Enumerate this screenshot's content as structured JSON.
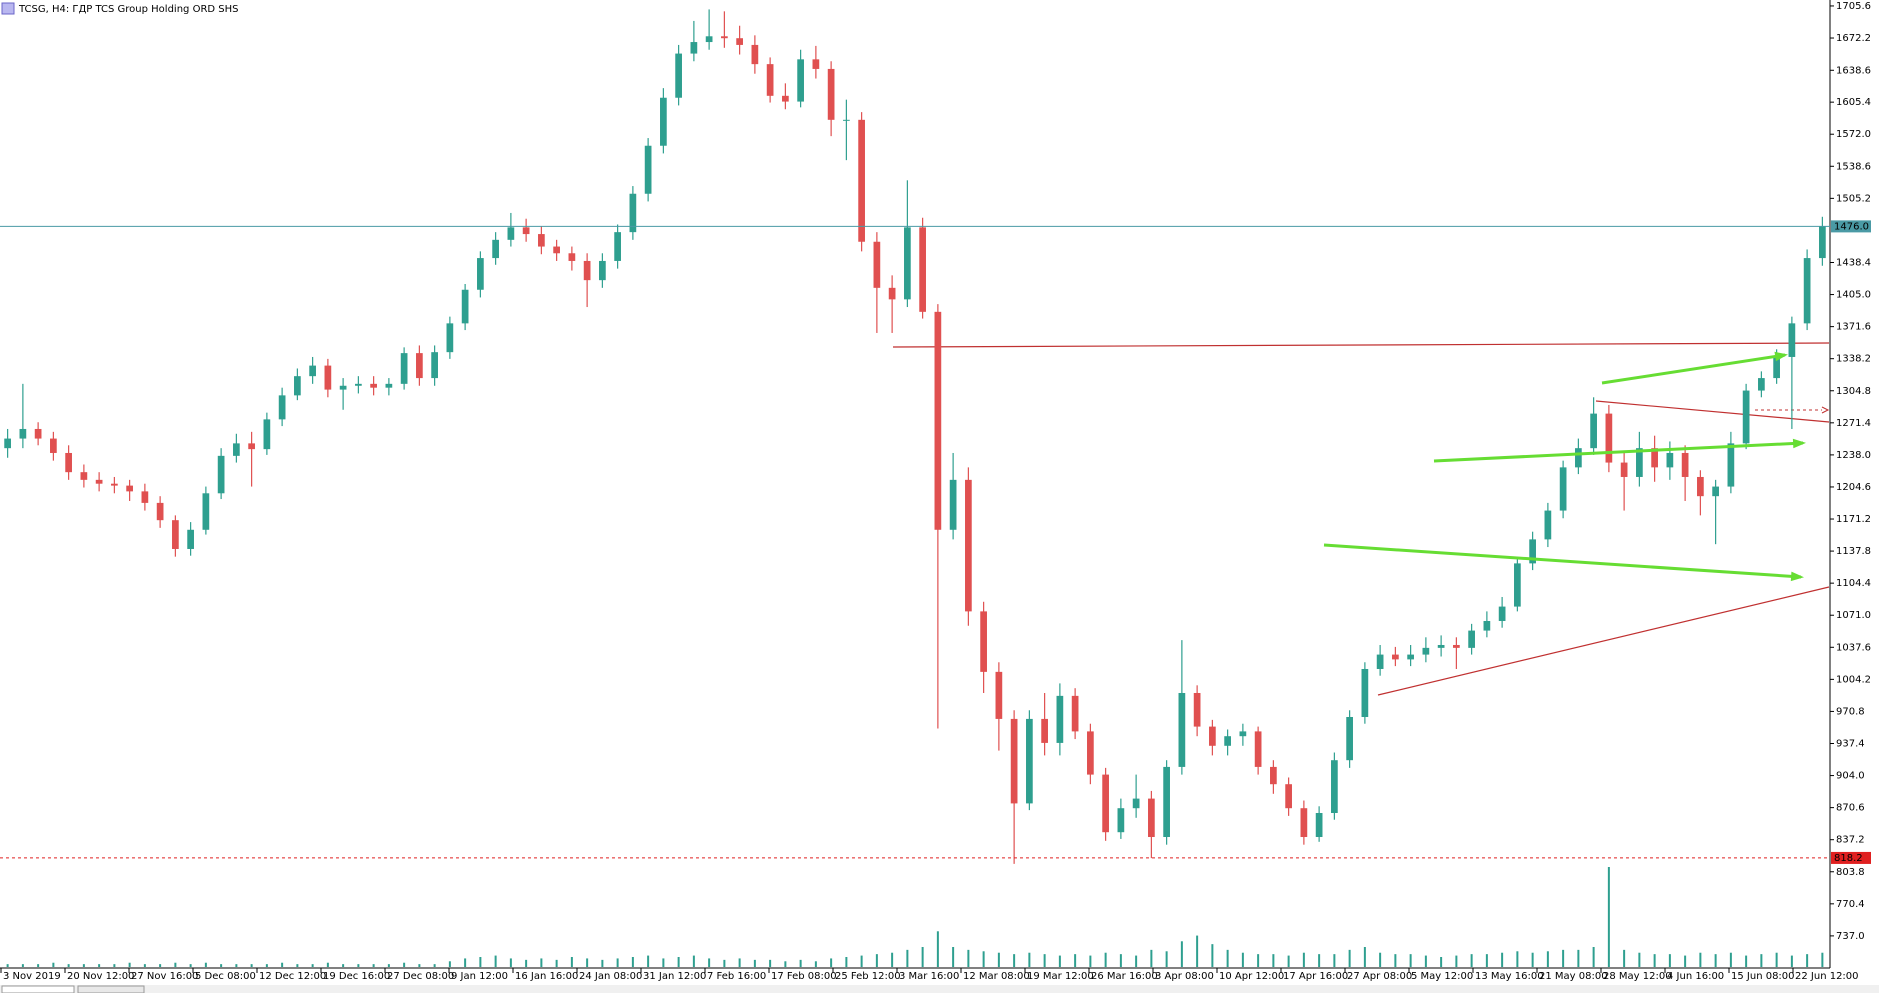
{
  "chart_data": {
    "type": "candlestick",
    "title": "TCSG, H4:  ГДР TCS Group Holding ORD SHS",
    "bull_color": "#2e9f8f",
    "bear_color": "#e05050",
    "volume_color": "#2e9f8f",
    "ylim": [
      704.6,
      1711.8
    ],
    "yticks": [
      1705.6,
      {
        "value": 1672.2,
        "label": "1672.2"
      },
      1638.6,
      1605.4,
      {
        "value": 1572.0,
        "label": "1572.0"
      },
      1538.6,
      1505.2,
      1438.4,
      {
        "value": 1405.0,
        "label": "1405.0"
      },
      1371.6,
      1338.2,
      1304.8,
      1271.4,
      {
        "value": 1238.0,
        "label": "1238.0"
      },
      1204.6,
      1171.2,
      1137.8,
      1104.4,
      {
        "value": 1071.0,
        "label": "1071.0"
      },
      1037.6,
      1004.2,
      970.8,
      937.4,
      {
        "value": 904.0,
        "label": "904.0"
      },
      870.6,
      837.2,
      803.8,
      770.4,
      {
        "value": 737.0,
        "label": "737.0"
      }
    ],
    "hlines": [
      {
        "value": 1476.0,
        "label": "1476.0",
        "color": "#4a9aa5",
        "style": "solid"
      },
      {
        "value": 818.2,
        "label": "818.2",
        "color": "#e02020",
        "style": "dotted"
      }
    ],
    "xtick_labels": [
      "3 Nov 2019",
      "20 Nov 12:00",
      "27 Nov 16:00",
      "5 Dec 08:00",
      "12 Dec 12:00",
      "19 Dec 16:00",
      "27 Dec 08:00",
      "9 Jan 12:00",
      "16 Jan 16:00",
      "24 Jan 08:00",
      "31 Jan 12:00",
      "7 Feb 16:00",
      "17 Feb 08:00",
      "25 Feb 12:00",
      "3 Mar 16:00",
      "12 Mar 08:00",
      "19 Mar 12:00",
      "26 Mar 16:00",
      "3 Apr 08:00",
      "10 Apr 12:00",
      "17 Apr 16:00",
      "27 Apr 08:00",
      "5 May 12:00",
      "13 May 16:00",
      "21 May 08:00",
      "28 May 12:00",
      "4 Jun 16:00",
      "15 Jun 08:00",
      "22 Jun 12:00"
    ],
    "open": [
      1245,
      1255,
      1265,
      1255,
      1240,
      1220,
      1212,
      1208,
      1206,
      1200,
      1188,
      1170,
      1140,
      1160,
      1198,
      1237,
      1250,
      1244,
      1275,
      1300,
      1320,
      1331,
      1306,
      1310,
      1312,
      1308,
      1312,
      1344,
      1318,
      1345,
      1375,
      1410,
      1443,
      1462,
      1475,
      1468,
      1455,
      1448,
      1440,
      1420,
      1440,
      1470,
      1510,
      1560,
      1610,
      1656,
      1668,
      1674,
      1672,
      1665,
      1645,
      1612,
      1606,
      1650,
      1640,
      1587,
      1587,
      1460,
      1412,
      1400,
      1475,
      1387,
      1160,
      1212,
      1075,
      1012,
      963,
      875,
      963,
      938,
      987,
      950,
      905,
      845,
      870,
      880,
      840,
      913,
      990,
      955,
      935,
      945,
      950,
      913,
      895,
      870,
      840,
      865,
      920,
      965,
      1015,
      1030,
      1025,
      1030,
      1037,
      1040,
      1037,
      1055,
      1065,
      1080,
      1125,
      1150,
      1180,
      1225,
      1245,
      1281,
      1230,
      1215,
      1245,
      1225,
      1240,
      1215,
      1195,
      1205,
      1250,
      1305,
      1318,
      1340,
      1375,
      1443
    ],
    "high": [
      1265,
      1312,
      1272,
      1262,
      1248,
      1228,
      1220,
      1215,
      1212,
      1208,
      1195,
      1175,
      1168,
      1205,
      1245,
      1260,
      1262,
      1282,
      1308,
      1328,
      1340,
      1338,
      1318,
      1320,
      1320,
      1318,
      1350,
      1352,
      1352,
      1382,
      1416,
      1450,
      1470,
      1490,
      1484,
      1476,
      1462,
      1455,
      1448,
      1448,
      1478,
      1518,
      1568,
      1620,
      1665,
      1690,
      1702,
      1700,
      1685,
      1675,
      1652,
      1625,
      1660,
      1664,
      1648,
      1608,
      1595,
      1470,
      1425,
      1524,
      1485,
      1395,
      1240,
      1225,
      1085,
      1022,
      972,
      972,
      990,
      1000,
      995,
      958,
      912,
      880,
      905,
      888,
      920,
      1045,
      998,
      962,
      952,
      958,
      955,
      920,
      902,
      878,
      872,
      928,
      972,
      1022,
      1040,
      1038,
      1040,
      1048,
      1050,
      1048,
      1062,
      1075,
      1090,
      1132,
      1158,
      1188,
      1232,
      1255,
      1298,
      1290,
      1240,
      1262,
      1258,
      1252,
      1248,
      1222,
      1212,
      1262,
      1312,
      1325,
      1348,
      1382,
      1452,
      1486
    ],
    "low": [
      1235,
      1245,
      1248,
      1232,
      1212,
      1204,
      1200,
      1198,
      1190,
      1180,
      1162,
      1132,
      1133,
      1155,
      1192,
      1230,
      1205,
      1238,
      1268,
      1295,
      1312,
      1298,
      1285,
      1302,
      1300,
      1300,
      1306,
      1310,
      1310,
      1338,
      1368,
      1402,
      1436,
      1455,
      1460,
      1447,
      1440,
      1430,
      1392,
      1412,
      1432,
      1462,
      1502,
      1552,
      1602,
      1648,
      1660,
      1662,
      1655,
      1635,
      1605,
      1598,
      1600,
      1630,
      1570,
      1545,
      1450,
      1365,
      1365,
      1392,
      1380,
      953,
      1150,
      1060,
      990,
      930,
      812,
      868,
      925,
      925,
      942,
      895,
      836,
      838,
      860,
      818,
      832,
      905,
      945,
      925,
      925,
      935,
      905,
      885,
      862,
      832,
      835,
      858,
      912,
      958,
      1008,
      1018,
      1018,
      1022,
      1028,
      1015,
      1030,
      1048,
      1058,
      1075,
      1118,
      1142,
      1172,
      1218,
      1238,
      1220,
      1180,
      1205,
      1210,
      1212,
      1190,
      1175,
      1145,
      1198,
      1244,
      1298,
      1312,
      1265,
      1368,
      1435
    ],
    "close": [
      1255,
      1265,
      1255,
      1240,
      1220,
      1212,
      1208,
      1206,
      1200,
      1188,
      1170,
      1140,
      1160,
      1198,
      1237,
      1250,
      1244,
      1275,
      1300,
      1320,
      1331,
      1306,
      1310,
      1312,
      1308,
      1312,
      1344,
      1318,
      1345,
      1375,
      1410,
      1443,
      1462,
      1475,
      1468,
      1455,
      1448,
      1440,
      1420,
      1440,
      1470,
      1510,
      1560,
      1610,
      1656,
      1668,
      1674,
      1672,
      1665,
      1645,
      1612,
      1606,
      1650,
      1640,
      1587,
      1587,
      1460,
      1412,
      1400,
      1475,
      1387,
      1160,
      1212,
      1075,
      1012,
      963,
      875,
      963,
      938,
      987,
      950,
      905,
      845,
      870,
      880,
      840,
      913,
      990,
      955,
      935,
      945,
      950,
      913,
      895,
      870,
      840,
      865,
      920,
      965,
      1015,
      1030,
      1025,
      1030,
      1037,
      1040,
      1037,
      1055,
      1065,
      1080,
      1125,
      1150,
      1180,
      1225,
      1245,
      1281,
      1230,
      1215,
      1245,
      1225,
      1240,
      1215,
      1195,
      1205,
      1250,
      1305,
      1318,
      1340,
      1375,
      1443,
      1476
    ],
    "volume": [
      2,
      2,
      2,
      3,
      2,
      2,
      2,
      2,
      3,
      2,
      2,
      3,
      2,
      3,
      2,
      2,
      2,
      2,
      3,
      2,
      2,
      3,
      2,
      2,
      2,
      2,
      3,
      2,
      2,
      4,
      6,
      7,
      8,
      6,
      5,
      6,
      5,
      7,
      6,
      5,
      6,
      7,
      8,
      6,
      7,
      8,
      6,
      5,
      6,
      5,
      5,
      4,
      5,
      4,
      6,
      7,
      8,
      9,
      10,
      12,
      14,
      25,
      14,
      12,
      11,
      10,
      9,
      10,
      9,
      8,
      9,
      8,
      10,
      9,
      8,
      12,
      11,
      18,
      22,
      16,
      12,
      10,
      9,
      9,
      8,
      10,
      9,
      9,
      12,
      14,
      10,
      9,
      9,
      8,
      7,
      8,
      9,
      9,
      10,
      11,
      10,
      11,
      12,
      12,
      14,
      70,
      12,
      10,
      9,
      9,
      8,
      10,
      9,
      10,
      8,
      9,
      10,
      8,
      9,
      10
    ]
  }
}
